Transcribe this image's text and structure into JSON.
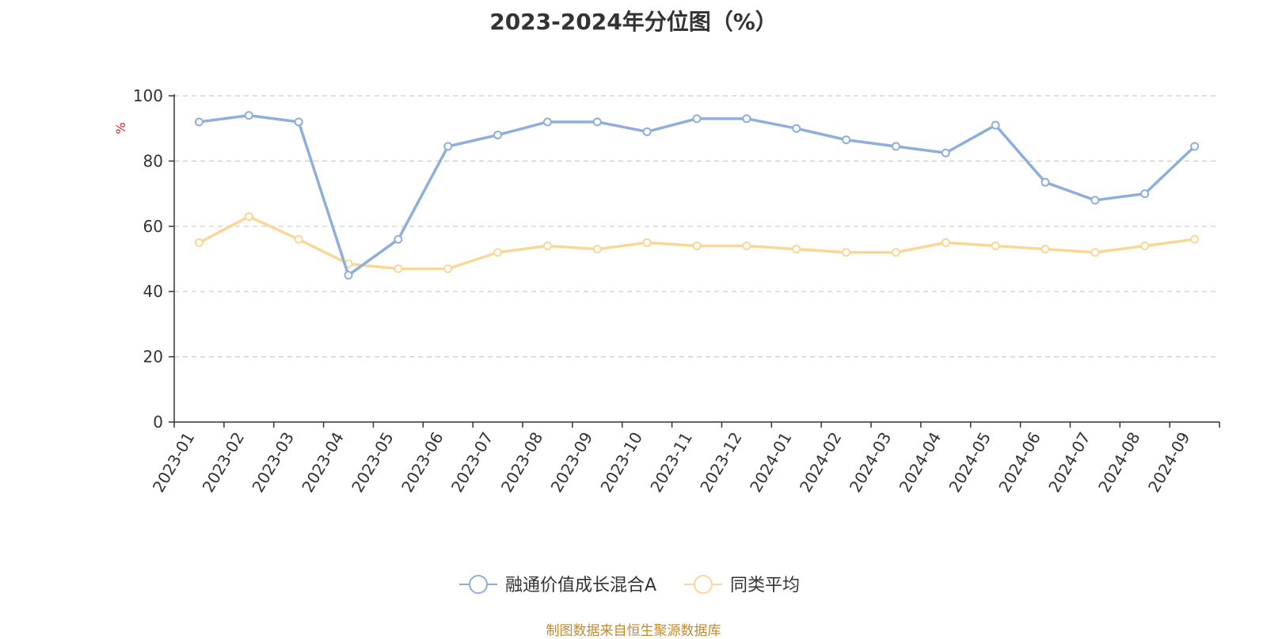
{
  "chart_data": {
    "type": "line",
    "title": "2023-2024年分位图（%）",
    "ylabel": "%",
    "xlabel": "",
    "ylim": [
      0,
      100
    ],
    "yticks": [
      0,
      20,
      40,
      60,
      80,
      100
    ],
    "grid": true,
    "legend_position": "bottom",
    "categories": [
      "2023-01",
      "2023-02",
      "2023-03",
      "2023-04",
      "2023-05",
      "2023-06",
      "2023-07",
      "2023-08",
      "2023-09",
      "2023-10",
      "2023-11",
      "2023-12",
      "2024-01",
      "2024-02",
      "2024-03",
      "2024-04",
      "2024-05",
      "2024-06",
      "2024-07",
      "2024-08",
      "2024-09"
    ],
    "series": [
      {
        "name": "融通价值成长混合A",
        "color": "#8eaedb",
        "values": [
          92,
          94,
          92,
          45,
          56,
          84.5,
          88,
          92,
          92,
          89,
          93,
          93,
          90,
          86.5,
          84.5,
          82.5,
          91,
          73.5,
          68,
          70,
          84.5
        ]
      },
      {
        "name": "同类平均",
        "color": "#fad797",
        "values": [
          55,
          63,
          56,
          48.5,
          47,
          47,
          52,
          54,
          53,
          55,
          54,
          54,
          53,
          52,
          52,
          55,
          54,
          53,
          52,
          54,
          56
        ]
      }
    ]
  },
  "footer": "制图数据来自恒生聚源数据库"
}
